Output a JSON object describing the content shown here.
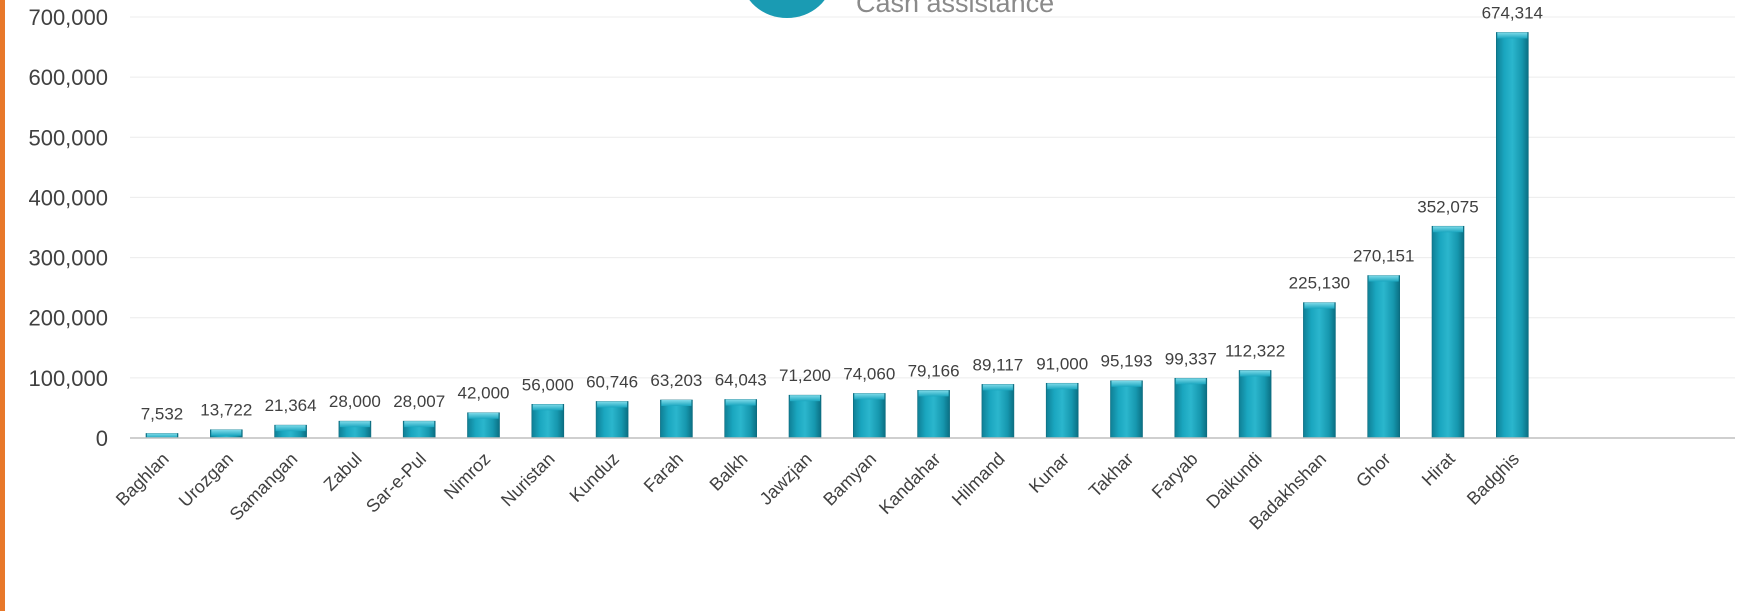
{
  "legend": {
    "label": "Cash assistance",
    "color": "#1a9bb3"
  },
  "chart_data": {
    "type": "bar",
    "title": "",
    "xlabel": "",
    "ylabel": "",
    "ylim": [
      0,
      700000
    ],
    "yticks": [
      0,
      100000,
      200000,
      300000,
      400000,
      500000,
      600000,
      700000
    ],
    "ytick_labels": [
      "0",
      "100,000",
      "200,000",
      "300,000",
      "400,000",
      "500,000",
      "600,000",
      "700,000"
    ],
    "grid": true,
    "categories": [
      "Baghlan",
      "Urozgan",
      "Samangan",
      "Zabul",
      "Sar-e-Pul",
      "Nimroz",
      "Nuristan",
      "Kunduz",
      "Farah",
      "Balkh",
      "Jawzjan",
      "Bamyan",
      "Kandahar",
      "Hilmand",
      "Kunar",
      "Takhar",
      "Faryab",
      "Daikundi",
      "Badakhshan",
      "Ghor",
      "Hirat",
      "Badghis"
    ],
    "series": [
      {
        "name": "Cash assistance",
        "values": [
          7532,
          13722,
          21364,
          28000,
          28007,
          42000,
          56000,
          60746,
          63203,
          64043,
          71200,
          74060,
          79166,
          89117,
          91000,
          95193,
          99337,
          112322,
          225130,
          270151,
          352075,
          674314
        ],
        "labels": [
          "7,532",
          "13,722",
          "21,364",
          "28,000",
          "28,007",
          "42,000",
          "56,000",
          "60,746",
          "63,203",
          "64,043",
          "71,200",
          "74,060",
          "79,166",
          "89,117",
          "91,000",
          "95,193",
          "99,337",
          "112,322",
          "225,130",
          "270,151",
          "352,075",
          "674,314"
        ]
      }
    ],
    "bar_color": "#1a9bb3",
    "grid_color": "#ececec",
    "axis_color": "#bfbfbf"
  }
}
